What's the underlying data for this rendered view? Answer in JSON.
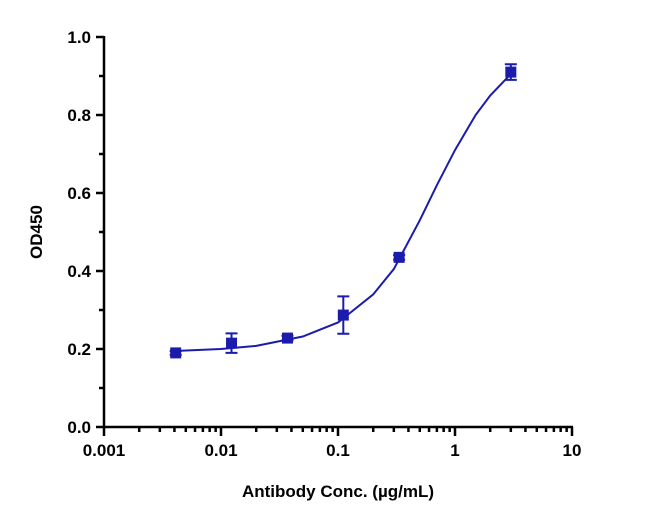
{
  "chart_data": {
    "type": "scatter",
    "xlabel": "Antibody Conc. (µg/mL)",
    "ylabel": "OD450",
    "xscale": "log",
    "xlim": [
      0.001,
      10
    ],
    "xticks": [
      0.001,
      0.01,
      0.1,
      1,
      10
    ],
    "ylim": [
      0,
      1
    ],
    "yticks": [
      {
        "value": 0,
        "label": "0.0"
      },
      0.2,
      0.4,
      0.6,
      0.8,
      {
        "value": 1,
        "label": "1.0"
      }
    ],
    "color": "#1c1cac",
    "x": [
      0.0041,
      0.0123,
      0.037,
      0.111,
      0.333,
      3.0
    ],
    "values": [
      0.19,
      0.215,
      0.228,
      0.287,
      0.435,
      0.91
    ],
    "errors": [
      0.005,
      0.025,
      0.006,
      0.048,
      0.006,
      0.02
    ],
    "fit": {
      "x": [
        0.004,
        0.01,
        0.02,
        0.05,
        0.1,
        0.2,
        0.3,
        0.5,
        0.7,
        1,
        1.5,
        2,
        3
      ],
      "values": [
        0.195,
        0.2,
        0.208,
        0.232,
        0.268,
        0.34,
        0.405,
        0.53,
        0.62,
        0.71,
        0.8,
        0.85,
        0.905
      ]
    }
  }
}
